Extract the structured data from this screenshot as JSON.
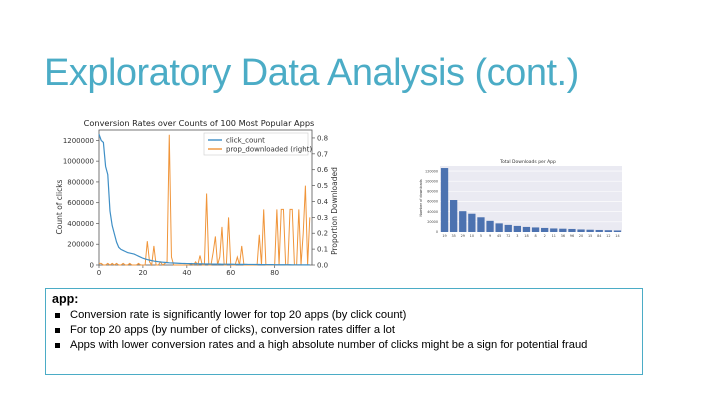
{
  "slide": {
    "title": "Exploratory Data Analysis (cont.)"
  },
  "textbox": {
    "heading": "app:",
    "bullets": [
      "Conversion rate is significantly lower for top 20 apps (by click count)",
      "For top 20 apps (by number of clicks), conversion rates differ a lot",
      "Apps with lower conversion rates and a high absolute number of clicks might be a sign for potential fraud"
    ]
  },
  "chart_data": [
    {
      "type": "line",
      "title": "Conversion Rates over Counts of 100 Most Popular Apps",
      "xlabel": "",
      "ylabel": "Count of clicks",
      "y2label": "Proportion Downloaded",
      "xlim": [
        0,
        97
      ],
      "ylim": [
        0,
        1300000
      ],
      "y2lim": [
        0,
        0.85
      ],
      "xticks": [
        0,
        20,
        40,
        60,
        80
      ],
      "yticks": [
        0,
        200000,
        400000,
        600000,
        800000,
        1000000,
        1200000
      ],
      "y2ticks": [
        0.0,
        0.1,
        0.2,
        0.3,
        0.4,
        0.5,
        0.6,
        0.7,
        0.8
      ],
      "legend_position": "top-right",
      "series": [
        {
          "name": "click_count",
          "axis": "left",
          "color": "#3f8fc6",
          "values": [
            1260000,
            1200000,
            1180000,
            950000,
            870000,
            520000,
            380000,
            300000,
            220000,
            170000,
            150000,
            140000,
            130000,
            120000,
            115000,
            110000,
            105000,
            95000,
            85000,
            75000,
            65000,
            58000,
            52000,
            47000,
            42000,
            38000,
            35000,
            32000,
            29000,
            27000,
            25000,
            23000,
            21000,
            20000,
            19000,
            18000,
            17000,
            16000,
            15000,
            14500,
            14000,
            13500,
            13000,
            12500,
            12000,
            11500,
            11000,
            10500,
            10000,
            9800,
            9500,
            9200,
            9000,
            8800,
            8500,
            8200,
            8000,
            7800,
            7600,
            7400,
            7200,
            7000,
            6800,
            6600,
            6400,
            6200,
            6000,
            5800,
            5600,
            5400,
            5200,
            5000,
            4800,
            4600,
            4400,
            4200,
            4000,
            3800,
            3600,
            3400,
            3200,
            3000,
            2800,
            2600,
            2400,
            2300,
            2200,
            2100,
            2000,
            1900,
            1800,
            1700,
            1600,
            1500,
            1400,
            1300,
            1200
          ]
        },
        {
          "name": "prop_downloaded (right)",
          "axis": "right",
          "color": "#f0953a",
          "values": [
            0.01,
            0.01,
            0.0,
            0.0,
            0.01,
            0.0,
            0.01,
            0.0,
            0.01,
            0.0,
            0.0,
            0.01,
            0.0,
            0.0,
            0.01,
            0.0,
            0.0,
            0.0,
            0.01,
            0.0,
            0.0,
            0.0,
            0.15,
            0.02,
            0.0,
            0.12,
            0.0,
            0.0,
            0.02,
            0.0,
            0.01,
            0.02,
            0.82,
            0.05,
            0.0,
            0.0,
            0.0,
            0.0,
            0.0,
            0.0,
            0.0,
            0.0,
            0.01,
            0.0,
            0.02,
            0.0,
            0.06,
            0.0,
            0.0,
            0.45,
            0.0,
            0.0,
            0.08,
            0.18,
            0.0,
            0.05,
            0.24,
            0.0,
            0.0,
            0.3,
            0.0,
            0.0,
            0.0,
            0.05,
            0.0,
            0.12,
            0.0,
            0.0,
            0.0,
            0.0,
            0.0,
            0.0,
            0.0,
            0.19,
            0.0,
            0.35,
            0.0,
            0.0,
            0.0,
            0.0,
            0.0,
            0.35,
            0.0,
            0.35,
            0.35,
            0.0,
            0.0,
            0.35,
            0.35,
            0.0,
            0.0,
            0.35,
            0.0,
            0.2,
            0.5,
            0.0,
            0.3
          ]
        }
      ]
    },
    {
      "type": "bar",
      "title": "Total Downloads per App",
      "xlabel": "",
      "ylabel": "Number of downloads",
      "ylim": [
        0,
        130000
      ],
      "yticks": [
        0,
        20000,
        40000,
        60000,
        80000,
        100000,
        120000
      ],
      "grid": true,
      "bar_color": "#4c72b0",
      "categories": [
        "19",
        "35",
        "29",
        "10",
        "5",
        "9",
        "45",
        "72",
        "3",
        "18",
        "8",
        "2",
        "11",
        "36",
        "96",
        "20",
        "15",
        "84",
        "12",
        "14"
      ],
      "values": [
        126000,
        63000,
        41000,
        36000,
        29000,
        22000,
        17000,
        14000,
        12000,
        10000,
        9000,
        8000,
        7000,
        6500,
        6000,
        5000,
        4500,
        4000,
        3500,
        3000
      ]
    }
  ]
}
